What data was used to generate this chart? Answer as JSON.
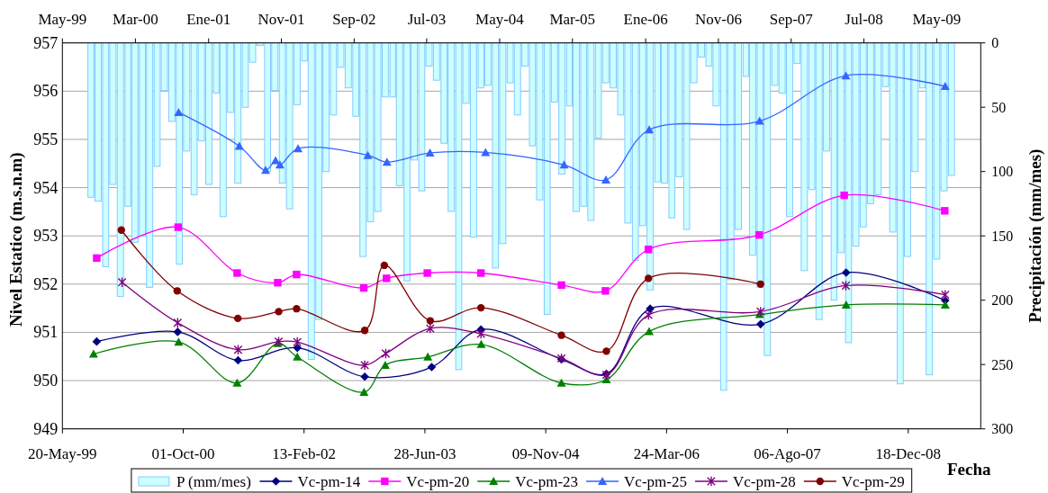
{
  "chart_data": {
    "type": "line",
    "xlabel": "Fecha",
    "ylabel": "Nivel Estatico (m.s.n.m)",
    "y2label": "Precipitación (mm/mes)",
    "xlim": [
      "1999-05-20",
      "2009-10-14"
    ],
    "xticks": [
      {
        "value": "1999-05-20",
        "label": "20-May-99"
      },
      {
        "value": "2000-10-01",
        "label": "01-Oct-00"
      },
      {
        "value": "2002-02-13",
        "label": "13-Feb-02"
      },
      {
        "value": "2003-06-28",
        "label": "28-Jun-03"
      },
      {
        "value": "2004-11-09",
        "label": "09-Nov-04"
      },
      {
        "value": "2006-03-24",
        "label": "24-Mar-06"
      },
      {
        "value": "2007-08-06",
        "label": "06-Ago-07"
      },
      {
        "value": "2008-12-18",
        "label": "18-Dec-08"
      }
    ],
    "x2lim": [
      "1999-05",
      "2009-11"
    ],
    "x2ticks": [
      {
        "value": "1999-05",
        "label": "May-99"
      },
      {
        "value": "2000-03",
        "label": "Mar-00"
      },
      {
        "value": "2001-01",
        "label": "Ene-01"
      },
      {
        "value": "2001-11",
        "label": "Nov-01"
      },
      {
        "value": "2002-09",
        "label": "Sep-02"
      },
      {
        "value": "2003-07",
        "label": "Jul-03"
      },
      {
        "value": "2004-05",
        "label": "May-04"
      },
      {
        "value": "2005-03",
        "label": "Mar-05"
      },
      {
        "value": "2006-01",
        "label": "Ene-06"
      },
      {
        "value": "2006-11",
        "label": "Nov-06"
      },
      {
        "value": "2007-09",
        "label": "Sep-07"
      },
      {
        "value": "2008-07",
        "label": "Jul-08"
      },
      {
        "value": "2009-05",
        "label": "May-09"
      }
    ],
    "ylim": [
      949,
      957
    ],
    "yticks": [
      949,
      950,
      951,
      952,
      953,
      954,
      955,
      956,
      957
    ],
    "y2lim": [
      300,
      0
    ],
    "y2ticks": [
      0,
      50,
      100,
      150,
      200,
      250,
      300
    ],
    "grid": "y",
    "legend": "bottom",
    "series": [
      {
        "type": "bar",
        "name": "P (mm/mes)",
        "color": "#ccffff",
        "axis": "y2",
        "x": [
          "1999-09-15",
          "1999-10-15",
          "1999-11-15",
          "1999-12-15",
          "2000-01-15",
          "2000-02-15",
          "2000-03-15",
          "2000-04-15",
          "2000-05-15",
          "2000-06-15",
          "2000-07-15",
          "2000-08-15",
          "2000-09-15",
          "2000-10-15",
          "2000-11-15",
          "2000-12-15",
          "2001-01-15",
          "2001-02-15",
          "2001-03-15",
          "2001-04-15",
          "2001-05-15",
          "2001-06-15",
          "2001-07-15",
          "2001-08-15",
          "2001-09-15",
          "2001-10-15",
          "2001-11-15",
          "2001-12-15",
          "2002-01-15",
          "2002-02-15",
          "2002-03-15",
          "2002-04-15",
          "2002-05-15",
          "2002-06-15",
          "2002-07-15",
          "2002-08-15",
          "2002-09-15",
          "2002-10-15",
          "2002-11-15",
          "2002-12-15",
          "2003-01-15",
          "2003-02-15",
          "2003-03-15",
          "2003-04-15",
          "2003-05-15",
          "2003-06-15",
          "2003-07-15",
          "2003-08-15",
          "2003-09-15",
          "2003-10-15",
          "2003-11-15",
          "2003-12-15",
          "2004-01-15",
          "2004-02-15",
          "2004-03-15",
          "2004-04-15",
          "2004-05-15",
          "2004-06-15",
          "2004-07-15",
          "2004-08-15",
          "2004-09-15",
          "2004-10-15",
          "2004-11-15",
          "2004-12-15",
          "2005-01-15",
          "2005-02-15",
          "2005-03-15",
          "2005-04-15",
          "2005-05-15",
          "2005-06-15",
          "2005-07-15",
          "2005-08-15",
          "2005-09-15",
          "2005-10-15",
          "2005-11-15",
          "2005-12-15",
          "2006-01-15",
          "2006-02-15",
          "2006-03-15",
          "2006-04-15",
          "2006-05-15",
          "2006-06-15",
          "2006-07-15",
          "2006-08-15",
          "2006-09-15",
          "2006-10-15",
          "2006-11-15",
          "2006-12-15",
          "2007-01-15",
          "2007-02-15",
          "2007-03-15",
          "2007-04-15",
          "2007-05-15",
          "2007-06-15",
          "2007-07-15",
          "2007-08-15",
          "2007-09-15",
          "2007-10-15",
          "2007-11-15",
          "2007-12-15",
          "2008-01-15",
          "2008-02-15",
          "2008-03-15",
          "2008-04-15",
          "2008-05-15",
          "2008-06-15",
          "2008-07-15",
          "2008-08-15",
          "2008-09-15",
          "2008-10-15",
          "2008-11-15",
          "2008-12-15",
          "2009-01-15",
          "2009-02-15",
          "2009-03-15",
          "2009-04-15",
          "2009-05-15",
          "2009-06-15"
        ],
        "values": [
          120,
          123,
          174,
          110,
          197,
          127,
          155,
          150,
          190,
          96,
          37,
          61,
          172,
          84,
          118,
          76,
          110,
          39,
          135,
          54,
          109,
          50,
          15,
          2,
          100,
          37,
          109,
          129,
          48,
          14,
          246,
          215,
          100,
          56,
          19,
          35,
          57,
          166,
          139,
          131,
          42,
          42,
          111,
          185,
          91,
          115,
          18,
          29,
          78,
          131,
          254,
          47,
          151,
          35,
          33,
          175,
          156,
          31,
          56,
          18,
          80,
          122,
          211,
          46,
          102,
          49,
          131,
          127,
          138,
          74,
          31,
          35,
          56,
          140,
          169,
          142,
          192,
          108,
          109,
          136,
          104,
          145,
          31,
          11,
          18,
          49,
          270,
          184,
          145,
          26,
          165,
          190,
          243,
          33,
          39,
          135,
          16,
          177,
          114,
          215,
          84,
          200,
          163,
          233,
          158,
          143,
          125,
          118,
          34,
          147,
          265,
          166,
          100,
          35,
          258,
          168,
          115,
          103
        ]
      },
      {
        "name": "Vc-pm-14",
        "color": "#000080",
        "marker": "diamond",
        "x": [
          "1999-10-09",
          "2000-09-08",
          "2001-05-16",
          "2002-01-16",
          "2002-10-22",
          "2003-07-26",
          "2004-02-15",
          "2005-01-13",
          "2005-07-18",
          "2006-01-15",
          "2007-04-17",
          "2008-04-05",
          "2009-05-20"
        ],
        "values": [
          950.81,
          951.01,
          950.42,
          950.68,
          950.08,
          950.28,
          951.06,
          950.44,
          950.14,
          951.49,
          951.17,
          952.24,
          951.66
        ]
      },
      {
        "name": "Vc-pm-20",
        "color": "#ff00ff",
        "marker": "square",
        "x": [
          "1999-10-09",
          "2000-09-10",
          "2001-05-12",
          "2001-10-27",
          "2002-01-13",
          "2002-10-18",
          "2003-01-20",
          "2003-07-08",
          "2004-02-15",
          "2005-01-13",
          "2005-07-14",
          "2006-01-08",
          "2007-04-11",
          "2008-03-28",
          "2009-05-18"
        ],
        "values": [
          952.54,
          953.18,
          952.23,
          952.03,
          952.2,
          951.92,
          952.12,
          952.23,
          952.23,
          951.98,
          951.86,
          952.72,
          953.02,
          953.84,
          953.52
        ]
      },
      {
        "name": "Vc-pm-23",
        "color": "#008000",
        "marker": "triangle",
        "x": [
          "1999-09-26",
          "2000-09-12",
          "2001-05-12",
          "2001-10-27",
          "2002-01-16",
          "2002-10-19",
          "2003-01-15",
          "2003-07-10",
          "2004-02-16",
          "2005-01-13",
          "2005-07-18",
          "2006-01-11",
          "2007-04-13",
          "2008-04-05",
          "2009-05-20"
        ],
        "values": [
          950.55,
          950.8,
          949.95,
          950.77,
          950.49,
          949.76,
          950.32,
          950.49,
          950.75,
          949.95,
          950.02,
          951.02,
          951.37,
          951.57,
          951.57
        ]
      },
      {
        "name": "Vc-pm-25",
        "color": "#3366ff",
        "marker": "triangle",
        "x": [
          "2000-09-12",
          "2001-05-21",
          "2001-09-07",
          "2001-10-18",
          "2001-11-05",
          "2002-01-19",
          "2002-11-04",
          "2003-01-22",
          "2003-07-19",
          "2004-03-05",
          "2005-01-24",
          "2005-07-16",
          "2006-01-11",
          "2007-04-13",
          "2008-04-04",
          "2009-05-20"
        ],
        "values": [
          955.56,
          954.86,
          954.36,
          954.56,
          954.47,
          954.81,
          954.67,
          954.53,
          954.72,
          954.73,
          954.47,
          954.16,
          955.2,
          955.38,
          956.32,
          956.1
        ]
      },
      {
        "name": "Vc-pm-28",
        "color": "#800080",
        "marker": "cross",
        "x": [
          "2000-01-22",
          "2000-09-08",
          "2001-05-16",
          "2001-10-31",
          "2002-01-16",
          "2002-10-22",
          "2003-01-17",
          "2003-07-20",
          "2004-02-15",
          "2005-01-13",
          "2005-07-18",
          "2006-01-08",
          "2007-04-17",
          "2008-04-04",
          "2009-05-20"
        ],
        "values": [
          952.04,
          951.2,
          950.64,
          950.81,
          950.8,
          950.32,
          950.56,
          951.08,
          950.97,
          950.46,
          950.12,
          951.36,
          951.43,
          951.97,
          951.78
        ]
      },
      {
        "name": "Vc-pm-29",
        "color": "#800000",
        "marker": "circle",
        "x": [
          "2000-01-19",
          "2000-09-06",
          "2001-05-15",
          "2001-10-31",
          "2002-01-13",
          "2002-10-22",
          "2003-01-11",
          "2003-07-20",
          "2004-02-15",
          "2005-01-13",
          "2005-07-18",
          "2006-01-08",
          "2007-04-17"
        ],
        "values": [
          953.12,
          951.86,
          951.29,
          951.43,
          951.49,
          951.04,
          952.39,
          951.24,
          951.51,
          950.94,
          950.61,
          952.12,
          952.0
        ]
      }
    ]
  }
}
